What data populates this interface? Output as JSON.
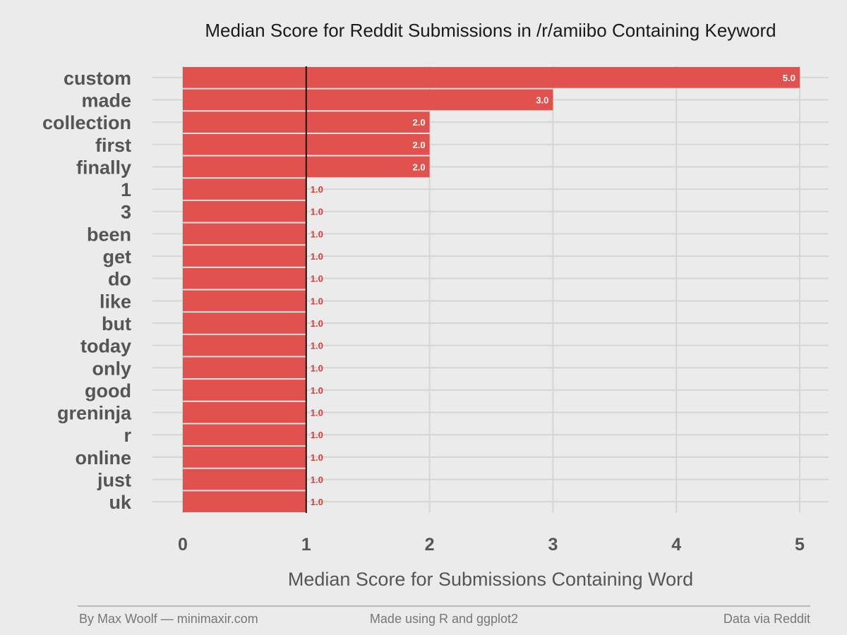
{
  "chart_data": {
    "type": "bar",
    "orientation": "horizontal",
    "title": "Median Score for Reddit Submissions in /r/amiibo Containing Keyword",
    "xlabel": "Median Score for Submissions Containing Word",
    "ylabel": "",
    "categories": [
      "custom",
      "made",
      "collection",
      "first",
      "finally",
      "1",
      "3",
      "been",
      "get",
      "do",
      "like",
      "but",
      "today",
      "only",
      "good",
      "greninja",
      "r",
      "online",
      "just",
      "uk"
    ],
    "values": [
      5.0,
      3.0,
      2.0,
      2.0,
      2.0,
      1.0,
      1.0,
      1.0,
      1.0,
      1.0,
      1.0,
      1.0,
      1.0,
      1.0,
      1.0,
      1.0,
      1.0,
      1.0,
      1.0,
      1.0
    ],
    "data_labels": [
      "5.0",
      "3.0",
      "2.0",
      "2.0",
      "2.0",
      "1.0",
      "1.0",
      "1.0",
      "1.0",
      "1.0",
      "1.0",
      "1.0",
      "1.0",
      "1.0",
      "1.0",
      "1.0",
      "1.0",
      "1.0",
      "1.0",
      "1.0"
    ],
    "xlim": [
      0,
      5
    ],
    "xticks": [
      0,
      1,
      2,
      3,
      4,
      5
    ],
    "reference_line": 1,
    "grid": true,
    "legend": "none",
    "colors": {
      "bar": "#e04a46",
      "label_inside": "#ffffff",
      "label_outside": "#d93b36",
      "background": "#ebebeb",
      "grid": "#d5d5d5",
      "reference_line": "#111111"
    }
  },
  "footer": {
    "left": "By Max Woolf — minimaxir.com",
    "center": "Made using R and ggplot2",
    "right": "Data via Reddit"
  }
}
